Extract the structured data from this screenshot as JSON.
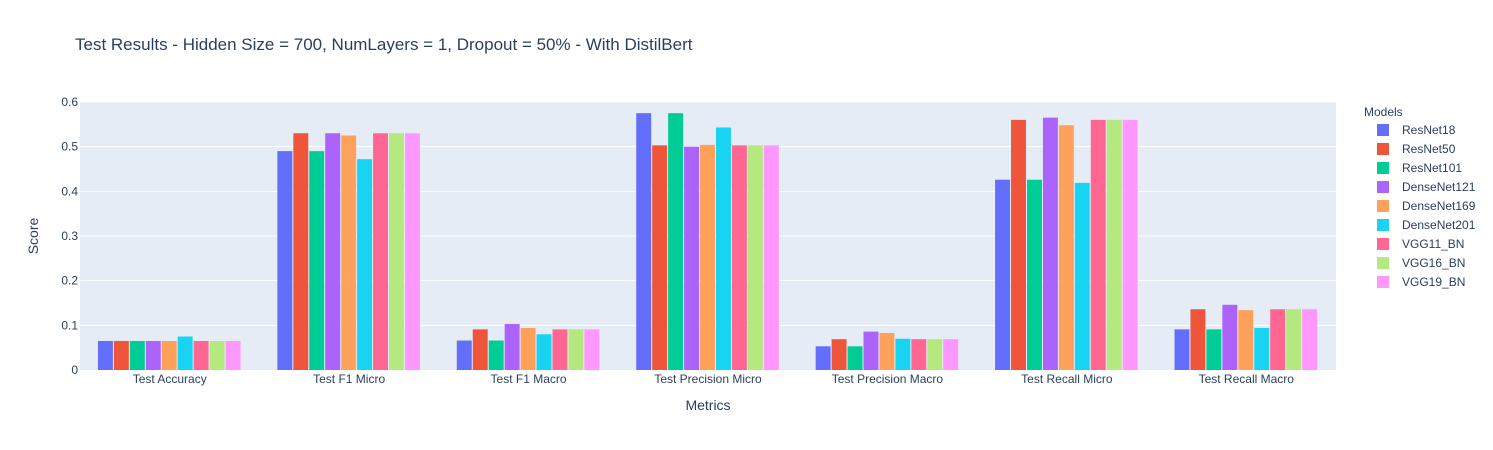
{
  "chart_data": {
    "type": "bar",
    "title": "Test Results - Hidden Size = 700, NumLayers = 1, Dropout = 50% - With DistilBert",
    "xlabel": "Metrics",
    "ylabel": "Score",
    "ylim": [
      0,
      0.6
    ],
    "yticks": [
      0,
      0.1,
      0.2,
      0.3,
      0.4,
      0.5,
      0.6
    ],
    "ytick_labels": [
      "0",
      "0.1",
      "0.2",
      "0.3",
      "0.4",
      "0.5",
      "0.6"
    ],
    "grid": true,
    "legend_title": "Models",
    "legend_position": "right",
    "background": "#e5ecf6",
    "categories": [
      "Test Accuracy",
      "Test F1 Micro",
      "Test F1 Macro",
      "Test Precision Micro",
      "Test Precision Macro",
      "Test Recall Micro",
      "Test Recall Macro"
    ],
    "series": [
      {
        "name": "ResNet18",
        "color": "#636efa",
        "values": [
          0.065,
          0.49,
          0.066,
          0.575,
          0.053,
          0.426,
          0.091
        ]
      },
      {
        "name": "ResNet50",
        "color": "#ef553b",
        "values": [
          0.065,
          0.53,
          0.091,
          0.503,
          0.069,
          0.56,
          0.136
        ]
      },
      {
        "name": "ResNet101",
        "color": "#00cc96",
        "values": [
          0.065,
          0.49,
          0.066,
          0.575,
          0.053,
          0.426,
          0.091
        ]
      },
      {
        "name": "DenseNet121",
        "color": "#ab63fa",
        "values": [
          0.065,
          0.53,
          0.103,
          0.5,
          0.086,
          0.565,
          0.146
        ]
      },
      {
        "name": "DenseNet169",
        "color": "#ffa15a",
        "values": [
          0.065,
          0.525,
          0.094,
          0.504,
          0.083,
          0.548,
          0.134
        ]
      },
      {
        "name": "DenseNet201",
        "color": "#19d3f3",
        "values": [
          0.075,
          0.472,
          0.08,
          0.543,
          0.07,
          0.419,
          0.094
        ]
      },
      {
        "name": "VGG11_BN",
        "color": "#ff6692",
        "values": [
          0.065,
          0.53,
          0.091,
          0.503,
          0.069,
          0.56,
          0.136
        ]
      },
      {
        "name": "VGG16_BN",
        "color": "#b6e880",
        "values": [
          0.065,
          0.53,
          0.091,
          0.503,
          0.069,
          0.56,
          0.136
        ]
      },
      {
        "name": "VGG19_BN",
        "color": "#ff97ff",
        "values": [
          0.065,
          0.53,
          0.091,
          0.503,
          0.069,
          0.56,
          0.136
        ]
      }
    ]
  }
}
